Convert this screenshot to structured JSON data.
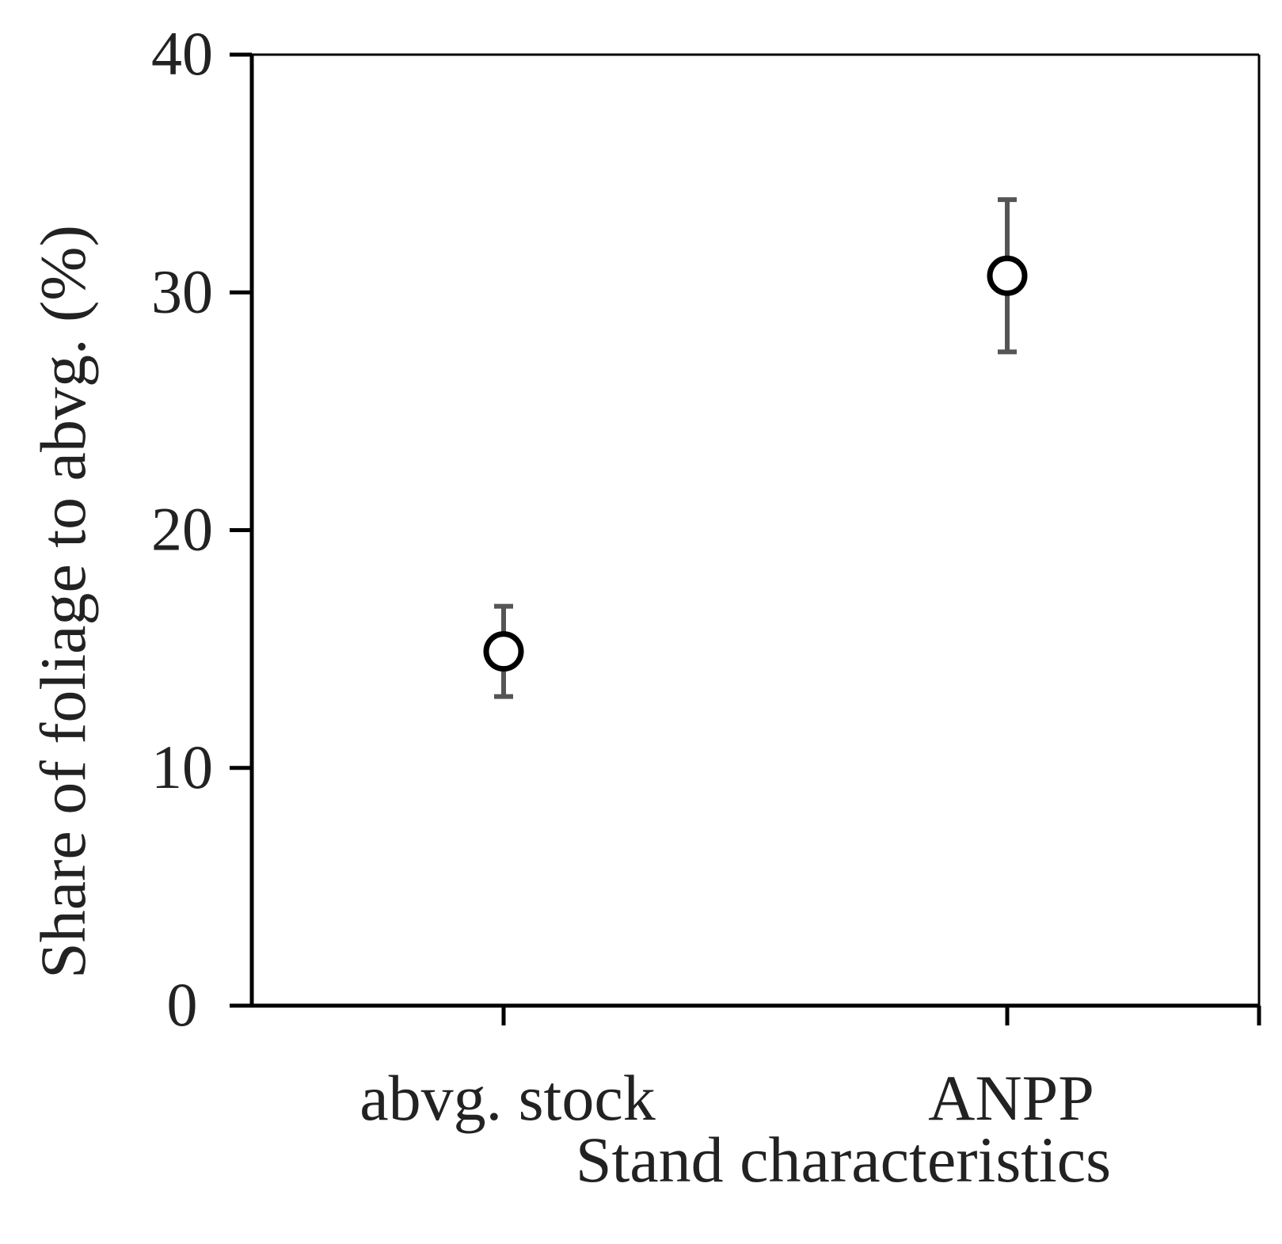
{
  "chart_data": {
    "type": "scatter",
    "x_label": "Stand characteristics",
    "y_label": "Share of foliage to abvg. (%)",
    "categories": [
      "abvg. stock",
      "ANPP"
    ],
    "series": [
      {
        "values": [
          14.9,
          30.7
        ],
        "errors": [
          1.9,
          3.2
        ],
        "color": "#000000",
        "error_color": "#555555"
      }
    ],
    "ylim": [
      0,
      40
    ],
    "yticks": [
      0,
      10,
      20,
      30,
      40
    ]
  }
}
